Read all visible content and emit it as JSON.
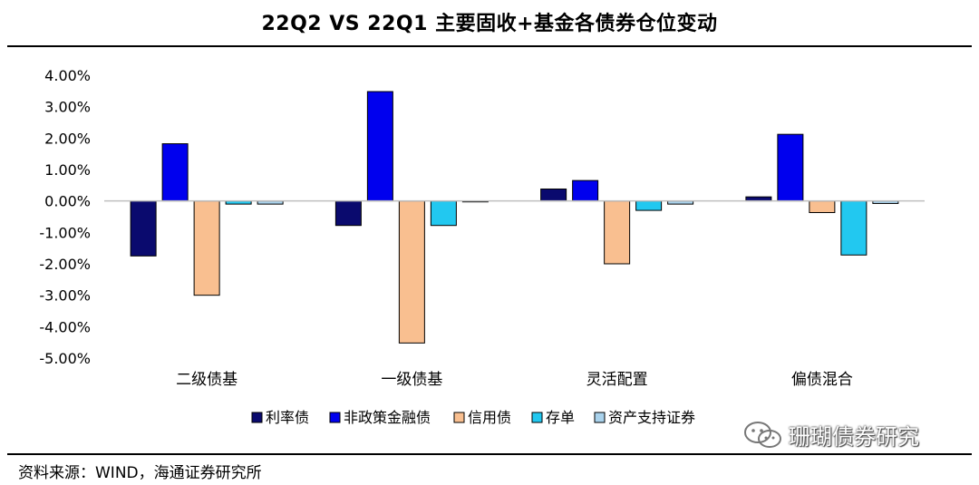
{
  "title": "22Q2 VS 22Q1 主要固收+基金各债券仓位变动",
  "source": "资料来源：WIND，海通证券研究所",
  "watermark": "珊瑚债券研究",
  "chart_data": {
    "type": "bar",
    "title": "22Q2 VS 22Q1 主要固收+基金各债券仓位变动",
    "categories": [
      "二级债基",
      "一级债基",
      "灵活配置",
      "偏债混合"
    ],
    "ylim": [
      -5,
      4
    ],
    "yticks": [
      4,
      3,
      2,
      1,
      0,
      -1,
      -2,
      -3,
      -4,
      -5
    ],
    "ytick_labels": [
      "4.00%",
      "3.00%",
      "2.00%",
      "1.00%",
      "0.00%",
      "-1.00%",
      "-2.00%",
      "-3.00%",
      "-4.00%",
      "-5.00%"
    ],
    "unit": "%",
    "grid": false,
    "legend_position": "bottom",
    "series": [
      {
        "name": "利率债",
        "color": "#0a0a6e",
        "values": [
          -1.75,
          -0.78,
          0.38,
          0.13
        ]
      },
      {
        "name": "非政策金融债",
        "color": "#0000ee",
        "values": [
          1.82,
          3.48,
          0.65,
          2.12
        ]
      },
      {
        "name": "信用债",
        "color": "#f9bf90",
        "values": [
          -3.0,
          -4.52,
          -2.0,
          -0.37
        ]
      },
      {
        "name": "存单",
        "color": "#22c8f0",
        "values": [
          -0.1,
          -0.78,
          -0.3,
          -1.72
        ]
      },
      {
        "name": "资产支持证券",
        "color": "#a9d2ec",
        "values": [
          -0.1,
          -0.03,
          -0.1,
          -0.08
        ]
      }
    ]
  }
}
